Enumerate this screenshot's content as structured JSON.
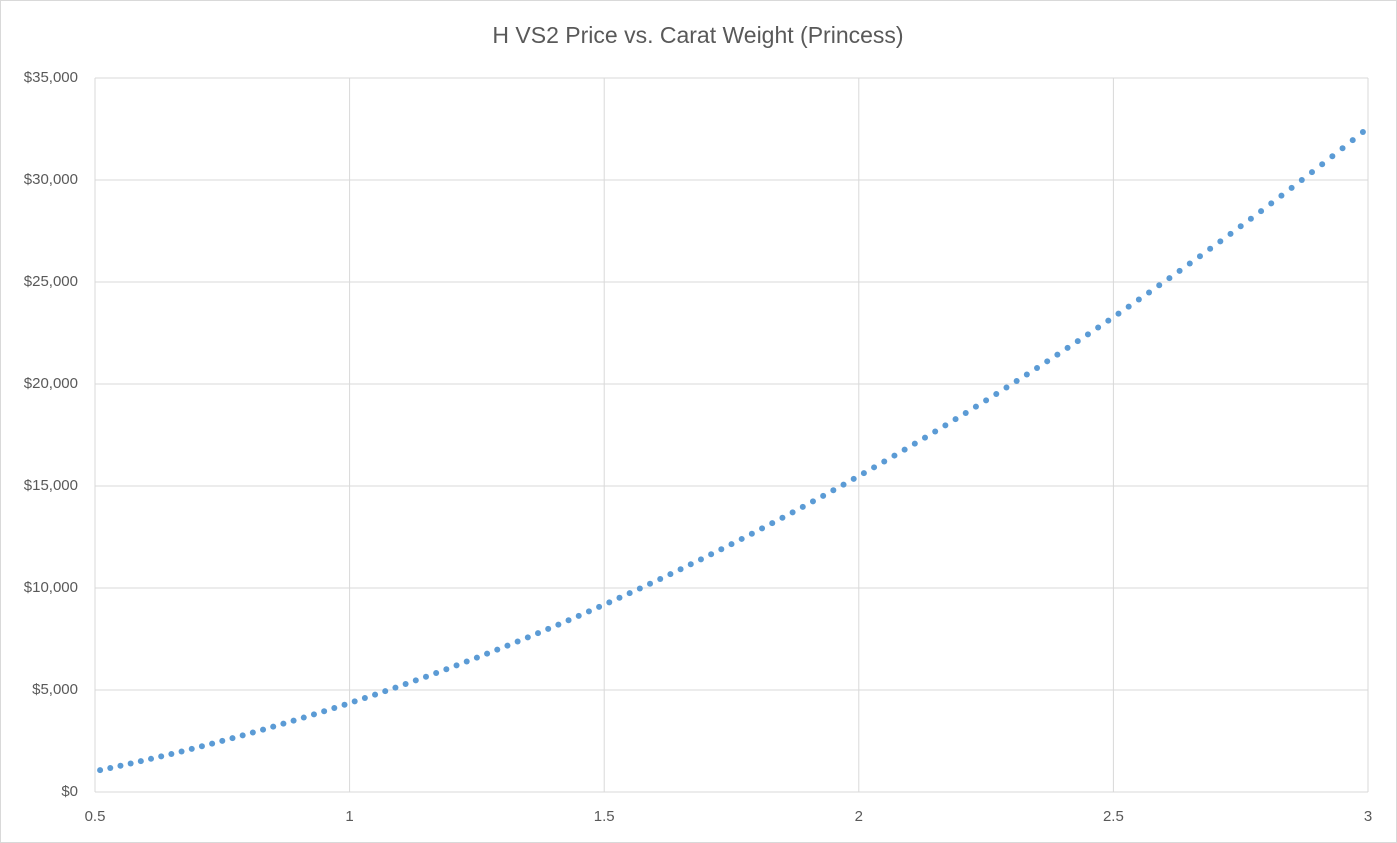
{
  "chart_data": {
    "type": "scatter",
    "title": "H VS2 Price vs. Carat Weight (Princess)",
    "color": "#5b9bd5",
    "grid": true,
    "xlim": [
      0.5,
      3
    ],
    "xticks": [
      0.5,
      1,
      1.5,
      2,
      2.5,
      3
    ],
    "ylim": [
      0,
      35000
    ],
    "yticks": [
      {
        "value": 0,
        "label": "$0"
      },
      {
        "value": 5000,
        "label": "$5,000"
      },
      {
        "value": 10000,
        "label": "$10,000"
      },
      {
        "value": 15000,
        "label": "$15,000"
      },
      {
        "value": 20000,
        "label": "$20,000"
      },
      {
        "value": 25000,
        "label": "$25,000"
      },
      {
        "value": 30000,
        "label": "$30,000"
      },
      {
        "value": 35000,
        "label": "$35,000"
      }
    ],
    "x": [
      0.51,
      0.53,
      0.55,
      0.57,
      0.59,
      0.61,
      0.63,
      0.65,
      0.67,
      0.69,
      0.71,
      0.73,
      0.75,
      0.77,
      0.79,
      0.81,
      0.83,
      0.85,
      0.87,
      0.89,
      0.91,
      0.93,
      0.95,
      0.97,
      0.99,
      1.01,
      1.03,
      1.05,
      1.07,
      1.09,
      1.11,
      1.13,
      1.15,
      1.17,
      1.19,
      1.21,
      1.23,
      1.25,
      1.27,
      1.29,
      1.31,
      1.33,
      1.35,
      1.37,
      1.39,
      1.41,
      1.43,
      1.45,
      1.47,
      1.49,
      1.51,
      1.53,
      1.55,
      1.57,
      1.59,
      1.61,
      1.63,
      1.65,
      1.67,
      1.69,
      1.71,
      1.73,
      1.75,
      1.77,
      1.79,
      1.81,
      1.83,
      1.85,
      1.87,
      1.89,
      1.91,
      1.93,
      1.95,
      1.97,
      1.99,
      2.01,
      2.03,
      2.05,
      2.07,
      2.09,
      2.11,
      2.13,
      2.15,
      2.17,
      2.19,
      2.21,
      2.23,
      2.25,
      2.27,
      2.29,
      2.31,
      2.33,
      2.35,
      2.37,
      2.39,
      2.41,
      2.43,
      2.45,
      2.47,
      2.49,
      2.51,
      2.53,
      2.55,
      2.57,
      2.59,
      2.61,
      2.63,
      2.65,
      2.67,
      2.69,
      2.71,
      2.73,
      2.75,
      2.77,
      2.79,
      2.81,
      2.83,
      2.85,
      2.87,
      2.89,
      2.91,
      2.93,
      2.95,
      2.97,
      2.99
    ],
    "values": [
      1071,
      1177,
      1286,
      1397,
      1511,
      1627,
      1745,
      1865,
      1988,
      2114,
      2242,
      2372,
      2504,
      2639,
      2776,
      2916,
      3058,
      3202,
      3349,
      3498,
      3649,
      3803,
      3959,
      4117,
      4279,
      4442,
      4608,
      4776,
      4946,
      5119,
      5294,
      5472,
      5652,
      5834,
      6019,
      6206,
      6395,
      6587,
      6781,
      6978,
      7176,
      7378,
      7581,
      7787,
      7996,
      8206,
      8419,
      8635,
      8853,
      9073,
      9296,
      9521,
      9748,
      9978,
      10210,
      10444,
      10681,
      10920,
      11162,
      11406,
      11652,
      11901,
      12152,
      12405,
      12661,
      12920,
      13180,
      13443,
      13708,
      13976,
      14246,
      14518,
      14793,
      15070,
      15350,
      15632,
      15916,
      16203,
      16492,
      16783,
      17077,
      17373,
      17672,
      17972,
      18276,
      18581,
      18889,
      19200,
      19512,
      19828,
      20145,
      20465,
      20787,
      21112,
      21439,
      21768,
      22100,
      22434,
      22770,
      23109,
      23450,
      23794,
      24140,
      24488,
      24839,
      25192,
      25547,
      25905,
      26265,
      26628,
      26993,
      27360,
      27730,
      28102,
      28476,
      28853,
      29232,
      29614,
      29998,
      30384,
      30773,
      31164,
      31557,
      31953,
      32351
    ]
  }
}
